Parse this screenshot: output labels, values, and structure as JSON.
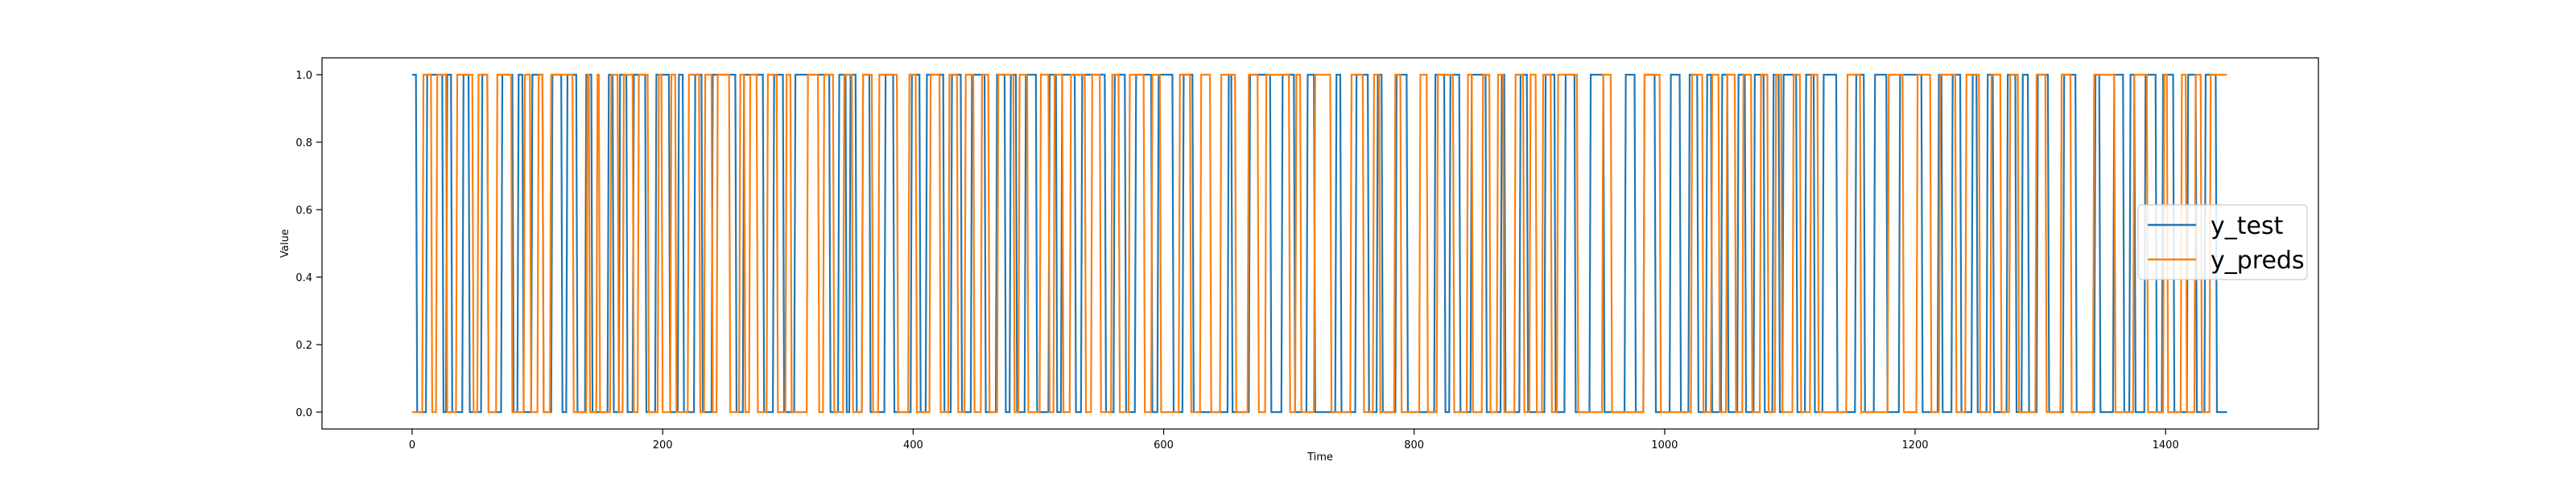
{
  "chart_data": {
    "type": "line",
    "xlabel": "Time",
    "ylabel": "Value",
    "xlim": [
      -72,
      1522
    ],
    "ylim": [
      -0.05,
      1.05
    ],
    "xticks": [
      0,
      200,
      400,
      600,
      800,
      1000,
      1200,
      1400
    ],
    "yticks": [
      0.0,
      0.2,
      0.4,
      0.6,
      0.8,
      1.0
    ],
    "legend_position": "center-right",
    "grid": false,
    "n_points": 1450,
    "series": [
      {
        "name": "y_test",
        "color": "#1f77b4",
        "initial": 1,
        "toggles": [
          3,
          11,
          24,
          27,
          31,
          40,
          45,
          55,
          60,
          71,
          80,
          84,
          88,
          95,
          104,
          111,
          119,
          123,
          131,
          138,
          143,
          156,
          160,
          165,
          171,
          176,
          186,
          194,
          205,
          212,
          216,
          225,
          231,
          239,
          258,
          264,
          280,
          288,
          296,
          305,
          333,
          340,
          346,
          349,
          354,
          359,
          365,
          377,
          384,
          398,
          405,
          410,
          424,
          430,
          438,
          446,
          457,
          466,
          473,
          477,
          482,
          489,
          498,
          508,
          514,
          518,
          529,
          534,
          553,
          560,
          569,
          577,
          590,
          595,
          607,
          615,
          623,
          651,
          654,
          668,
          685,
          694,
          704,
          714,
          720,
          737,
          741,
          753,
          763,
          770,
          774,
          785,
          794,
          816,
          824,
          828,
          836,
          845,
          857,
          869,
          872,
          884,
          890,
          904,
          912,
          920,
          928,
          940,
          951,
          968,
          976,
          983,
          992,
          1004,
          1012,
          1019,
          1026,
          1033,
          1037,
          1045,
          1050,
          1058,
          1064,
          1071,
          1079,
          1086,
          1091,
          1094,
          1105,
          1112,
          1119,
          1126,
          1137,
          1152,
          1159,
          1167,
          1177,
          1187,
          1205,
          1218,
          1221,
          1229,
          1236,
          1245,
          1249,
          1257,
          1262,
          1273,
          1280,
          1285,
          1290,
          1297,
          1306,
          1318,
          1328,
          1343,
          1347,
          1358,
          1366,
          1371,
          1375,
          1383,
          1392,
          1397,
          1406,
          1417,
          1424,
          1431,
          1440
        ]
      },
      {
        "name": "y_preds",
        "color": "#ff7f0e",
        "initial": 0,
        "toggles": [
          8,
          15,
          19,
          27,
          35,
          48,
          52,
          60,
          67,
          79,
          89,
          94,
          100,
          104,
          110,
          128,
          139,
          141,
          147,
          149,
          158,
          164,
          168,
          176,
          180,
          188,
          196,
          199,
          206,
          210,
          220,
          229,
          233,
          239,
          243,
          253,
          261,
          265,
          269,
          275,
          283,
          291,
          298,
          302,
          315,
          324,
          328,
          336,
          344,
          351,
          359,
          367,
          372,
          387,
          396,
          402,
          413,
          421,
          428,
          435,
          441,
          448,
          454,
          460,
          467,
          480,
          484,
          491,
          501,
          508,
          512,
          519,
          525,
          537,
          542,
          549,
          558,
          564,
          572,
          584,
          590,
          597,
          612,
          621,
          629,
          637,
          645,
          657,
          667,
          675,
          681,
          700,
          705,
          709,
          720,
          733,
          749,
          759,
          767,
          772,
          784,
          789,
          804,
          810,
          818,
          831,
          842,
          846,
          854,
          860,
          866,
          871,
          880,
          887,
          892,
          897,
          902,
          909,
          914,
          930,
          950,
          957,
          983,
          996,
          1021,
          1030,
          1037,
          1043,
          1049,
          1056,
          1062,
          1069,
          1076,
          1082,
          1088,
          1093,
          1102,
          1108,
          1116,
          1122,
          1145,
          1156,
          1178,
          1190,
          1201,
          1212,
          1219,
          1232,
          1240,
          1251,
          1260,
          1268,
          1275,
          1282,
          1296,
          1304,
          1316,
          1324,
          1342,
          1359,
          1374,
          1385,
          1398,
          1401,
          1412,
          1416,
          1423,
          1428,
          1435
        ]
      }
    ]
  }
}
